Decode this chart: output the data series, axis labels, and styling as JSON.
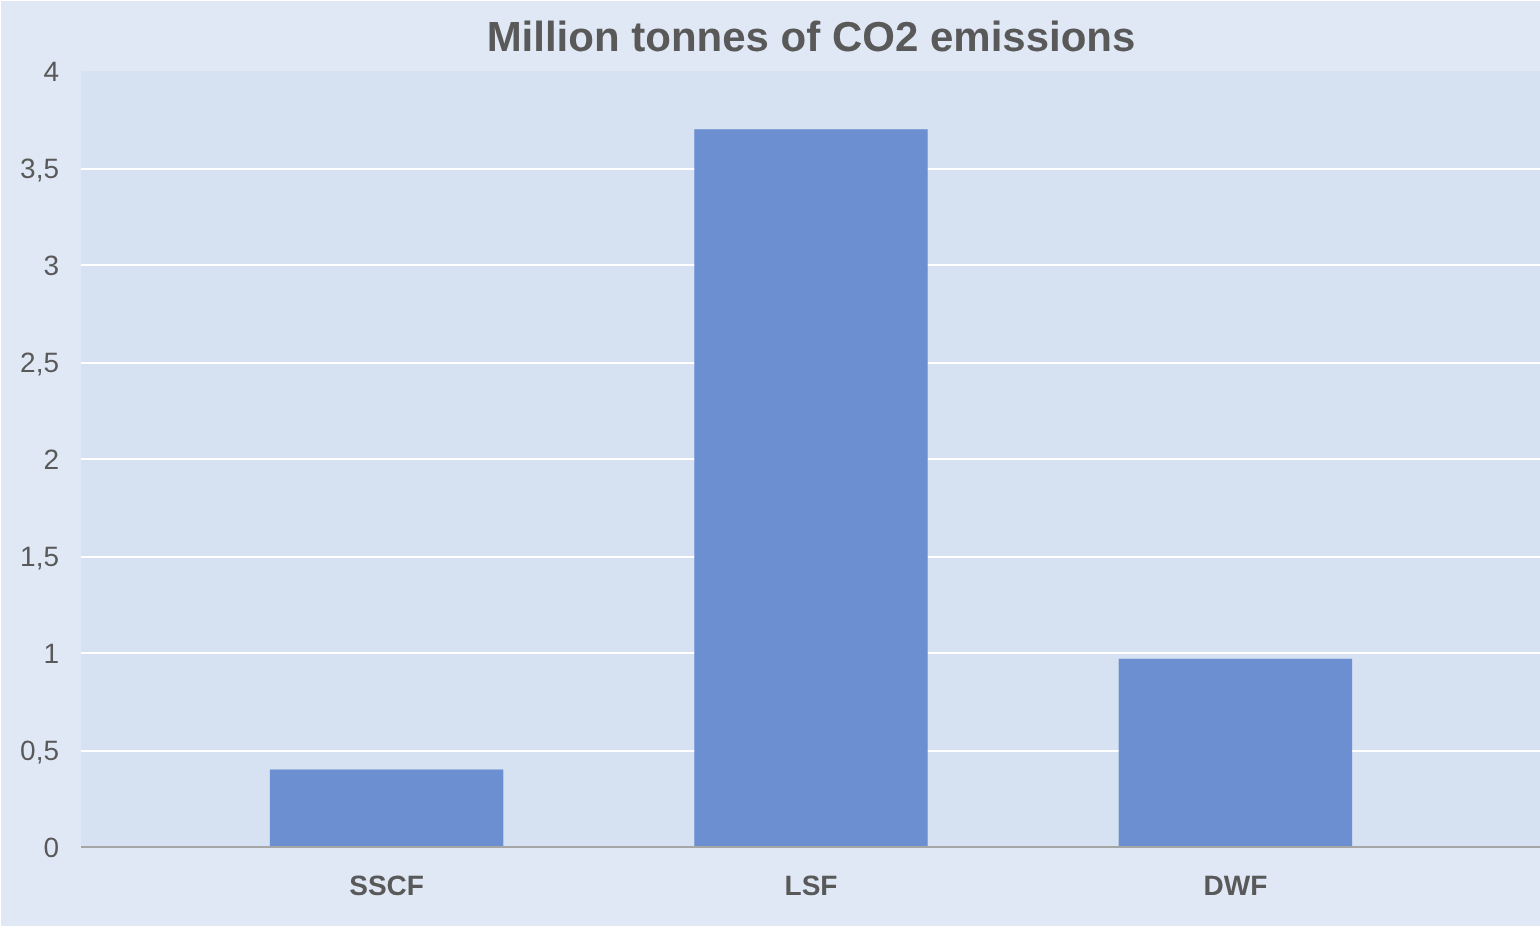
{
  "chart_data": {
    "type": "bar",
    "title": "Million tonnes of CO2 emissions",
    "categories": [
      "SSCF",
      "LSF",
      "DWF"
    ],
    "values": [
      0.4,
      3.7,
      0.97
    ],
    "color": "#6b8fd1",
    "ylim": [
      0,
      4
    ],
    "yticks": [
      0,
      {
        "value": 0.5,
        "label": "0,5"
      },
      1,
      {
        "value": 1.5,
        "label": "1,5"
      },
      2,
      {
        "value": 2.5,
        "label": "2,5"
      },
      3,
      {
        "value": 3.5,
        "label": "3,5"
      },
      4
    ],
    "grid": "y"
  }
}
